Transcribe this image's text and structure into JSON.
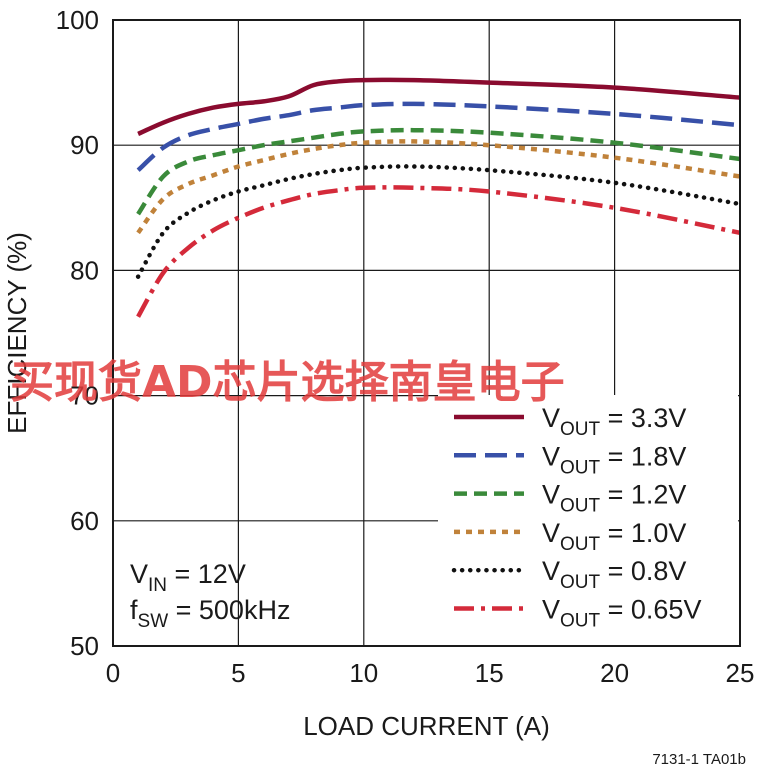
{
  "chart_data": {
    "type": "line",
    "xlabel": "LOAD CURRENT (A)",
    "ylabel": "EFFICIENCY (%)",
    "xlim": [
      0,
      25
    ],
    "ylim": [
      50,
      100
    ],
    "x_ticks": [
      0,
      5,
      10,
      15,
      20,
      25
    ],
    "y_ticks": [
      50,
      60,
      70,
      80,
      90,
      100
    ],
    "grid": true,
    "legend_position": "bottom-right",
    "conditions": [
      {
        "main": "V",
        "sub": "IN",
        "rest": " = 12V"
      },
      {
        "main": "f",
        "sub": "SW",
        "rest": " = 500kHz"
      }
    ],
    "figure_code": "7131-1 TA01b",
    "watermark": "买现货AD芯片选择南皇电子",
    "series": [
      {
        "label": {
          "main": "V",
          "sub": "OUT",
          "rest": " = 3.3V"
        },
        "color": "#8a0b2f",
        "dash": "solid",
        "x": [
          1,
          2,
          3,
          4,
          5,
          6,
          7,
          8,
          9,
          10,
          12,
          15,
          20,
          25
        ],
        "y": [
          90.9,
          91.8,
          92.5,
          93.0,
          93.3,
          93.5,
          93.9,
          94.8,
          95.1,
          95.2,
          95.2,
          95.0,
          94.6,
          93.8
        ]
      },
      {
        "label": {
          "main": "V",
          "sub": "OUT",
          "rest": " = 1.8V"
        },
        "color": "#3850a8",
        "dash": "long",
        "x": [
          1,
          2,
          3,
          4,
          5,
          6,
          7,
          8,
          9,
          10,
          12,
          15,
          20,
          25
        ],
        "y": [
          88.0,
          89.8,
          90.8,
          91.3,
          91.7,
          92.1,
          92.4,
          92.8,
          93.0,
          93.2,
          93.3,
          93.1,
          92.5,
          91.6
        ]
      },
      {
        "label": {
          "main": "V",
          "sub": "OUT",
          "rest": " = 1.2V"
        },
        "color": "#3a8a3a",
        "dash": "medium",
        "x": [
          1,
          2,
          3,
          4,
          5,
          6,
          7,
          8,
          9,
          10,
          12,
          15,
          20,
          25
        ],
        "y": [
          84.5,
          87.5,
          88.7,
          89.2,
          89.6,
          90.0,
          90.3,
          90.6,
          90.9,
          91.1,
          91.2,
          91.0,
          90.2,
          88.9
        ]
      },
      {
        "label": {
          "main": "V",
          "sub": "OUT",
          "rest": " = 1.0V"
        },
        "color": "#c0823a",
        "dash": "short",
        "x": [
          1,
          2,
          3,
          4,
          5,
          6,
          7,
          8,
          9,
          10,
          12,
          15,
          20,
          25
        ],
        "y": [
          83.0,
          85.7,
          86.9,
          87.6,
          88.3,
          88.8,
          89.3,
          89.7,
          90.0,
          90.2,
          90.3,
          90.0,
          89.0,
          87.5
        ]
      },
      {
        "label": {
          "main": "V",
          "sub": "OUT",
          "rest": " = 0.8V"
        },
        "color": "#111111",
        "dash": "dot",
        "x": [
          1,
          2,
          3,
          4,
          5,
          6,
          7,
          8,
          9,
          10,
          12,
          15,
          20,
          25
        ],
        "y": [
          79.5,
          83.0,
          84.6,
          85.6,
          86.3,
          86.8,
          87.3,
          87.7,
          88.0,
          88.2,
          88.3,
          88.0,
          87.0,
          85.3
        ]
      },
      {
        "label": {
          "main": "V",
          "sub": "OUT",
          "rest": " = 0.65V"
        },
        "color": "#d42a3a",
        "dash": "dashdot",
        "x": [
          1,
          2,
          3,
          4,
          5,
          6,
          7,
          8,
          9,
          10,
          12,
          15,
          20,
          25
        ],
        "y": [
          76.3,
          79.8,
          81.8,
          83.2,
          84.2,
          85.0,
          85.6,
          86.1,
          86.4,
          86.6,
          86.6,
          86.3,
          85.0,
          83.0
        ]
      }
    ]
  }
}
